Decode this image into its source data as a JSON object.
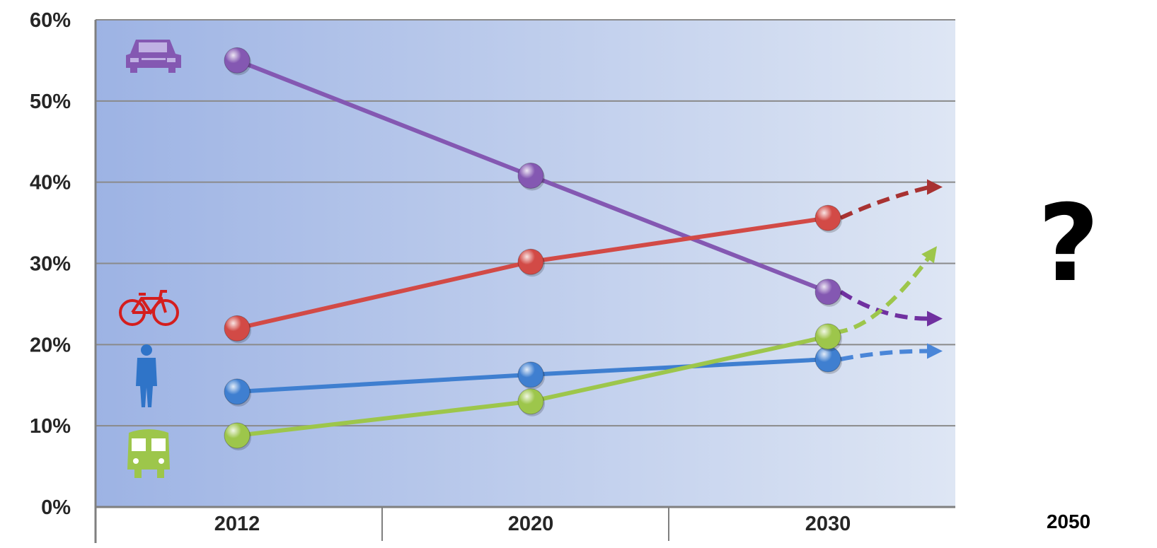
{
  "chart_data": {
    "type": "line",
    "categories": [
      "2012",
      "2020",
      "2030"
    ],
    "y_ticks": [
      "0%",
      "10%",
      "20%",
      "30%",
      "40%",
      "50%",
      "60%"
    ],
    "ylim": [
      0,
      60
    ],
    "grid": true,
    "series": [
      {
        "icon": "car-icon",
        "color": "#8458b2",
        "values": [
          55,
          40.8,
          26.5
        ],
        "projection": "down"
      },
      {
        "icon": "bicycle-icon",
        "color": "#d24a46",
        "values": [
          22,
          30.2,
          35.6
        ],
        "projection": "up"
      },
      {
        "icon": "pedestrian-icon",
        "color": "#3f7fd0",
        "values": [
          14.2,
          16.3,
          18.2
        ],
        "projection": "slightly-up"
      },
      {
        "icon": "bus-icon",
        "color": "#9dc64b",
        "values": [
          8.8,
          13,
          21
        ],
        "projection": "steep-up"
      }
    ],
    "future_year": "2050",
    "future_mark": "?"
  }
}
